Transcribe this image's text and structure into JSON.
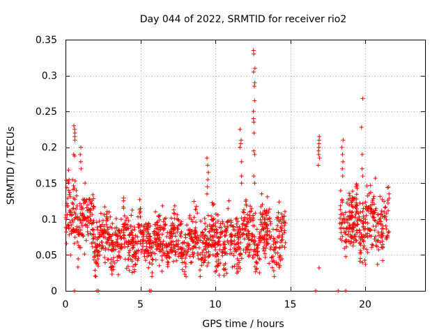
{
  "chart_data": {
    "type": "scatter",
    "title": "Day 044 of 2022, SRMTID for receiver rio2",
    "xlabel": "GPS time / hours",
    "ylabel": "SRMTID / TECUs",
    "xlim": [
      0,
      24
    ],
    "ylim": [
      0,
      0.35
    ],
    "x_ticks": [
      0,
      5,
      10,
      15,
      20
    ],
    "x_tick_labels": [
      "0",
      "5",
      "10",
      "15",
      "20"
    ],
    "y_ticks": [
      0,
      0.05,
      0.1,
      0.15,
      0.2,
      0.25,
      0.3,
      0.35
    ],
    "y_tick_labels": [
      "0",
      "0.05",
      "0.1",
      "0.15",
      "0.2",
      "0.25",
      "0.3",
      "0.35"
    ],
    "grid": true,
    "marker": "+",
    "colors": {
      "points": "#ff0000",
      "grid": "#a0a0a0",
      "frame": "#000000"
    },
    "series": [
      {
        "name": "rio2",
        "generated_points_note_hidden": false,
        "segments": [
          {
            "x_start": 0.0,
            "x_end": 1.9,
            "baseline": 0.1,
            "spread": 0.05
          },
          {
            "x_start": 1.9,
            "x_end": 9.3,
            "baseline": 0.07,
            "spread": 0.04
          },
          {
            "x_start": 9.3,
            "x_end": 11.5,
            "baseline": 0.07,
            "spread": 0.045
          },
          {
            "x_start": 11.5,
            "x_end": 14.7,
            "baseline": 0.075,
            "spread": 0.045
          },
          {
            "x_start": 18.3,
            "x_end": 21.6,
            "baseline": 0.095,
            "spread": 0.05
          }
        ],
        "spikes": [
          {
            "x": 0.6,
            "values": [
              0.23,
              0.225,
              0.22,
              0.215,
              0.21,
              0.19,
              0.188
            ]
          },
          {
            "x": 1.0,
            "values": [
              0.2,
              0.19,
              0.18,
              0.17
            ]
          },
          {
            "x": 9.5,
            "values": [
              0.185,
              0.175,
              0.165,
              0.155,
              0.145,
              0.135
            ]
          },
          {
            "x": 11.7,
            "values": [
              0.225,
              0.21,
              0.205,
              0.2,
              0.18,
              0.16,
              0.15
            ]
          },
          {
            "x": 12.6,
            "values": [
              0.335,
              0.33,
              0.31,
              0.305,
              0.29,
              0.285,
              0.265,
              0.25,
              0.24,
              0.235,
              0.22,
              0.195,
              0.19,
              0.16,
              0.15
            ]
          },
          {
            "x": 16.9,
            "values": [
              0.215,
              0.21,
              0.205,
              0.2,
              0.195,
              0.19,
              0.185,
              0.175,
              0.032
            ]
          },
          {
            "x": 18.5,
            "values": [
              0.21,
              0.2,
              0.19,
              0.18,
              0.17,
              0.16
            ]
          },
          {
            "x": 19.8,
            "values": [
              0.268,
              0.228,
              0.19,
              0.17,
              0.16
            ]
          }
        ],
        "zero_points_x": [
          0.6,
          2.1,
          2.2,
          5.6,
          5.7,
          16.7,
          18.2,
          18.7
        ]
      }
    ]
  }
}
